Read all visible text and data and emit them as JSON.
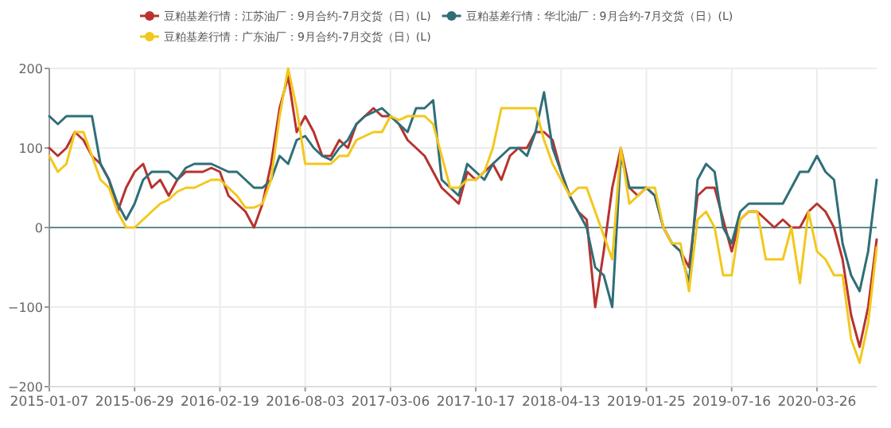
{
  "chart_data": {
    "type": "line",
    "categories": [
      "2015-01-07",
      null,
      null,
      null,
      null,
      null,
      null,
      null,
      null,
      null,
      "2015-06-29",
      null,
      null,
      null,
      null,
      null,
      null,
      null,
      null,
      null,
      "2016-02-19",
      null,
      null,
      null,
      null,
      null,
      null,
      null,
      null,
      null,
      "2016-08-03",
      null,
      null,
      null,
      null,
      null,
      null,
      null,
      null,
      null,
      "2017-03-06",
      null,
      null,
      null,
      null,
      null,
      null,
      null,
      null,
      null,
      "2017-10-17",
      null,
      null,
      null,
      null,
      null,
      null,
      null,
      null,
      null,
      "2018-04-13",
      null,
      null,
      null,
      null,
      null,
      null,
      null,
      null,
      null,
      "2019-01-25",
      null,
      null,
      null,
      null,
      null,
      null,
      null,
      null,
      null,
      "2019-07-16",
      null,
      null,
      null,
      null,
      null,
      null,
      null,
      null,
      null,
      "2020-03-26",
      null,
      null,
      null,
      null,
      null,
      null,
      null
    ],
    "ylim": [
      -200,
      200
    ],
    "yticks": [
      -200,
      -100,
      0,
      100,
      200
    ],
    "grid": true,
    "legend": "top",
    "ref_lines": [
      {
        "axis": "y",
        "value": 0,
        "color": "#5f8a8f"
      }
    ],
    "marker": "none",
    "line_style": "solid",
    "series": [
      {
        "name": "豆粕基差行情：江苏油厂：9月合约-7月交货（日）(L)",
        "color": "#b8322f",
        "values": [
          100,
          90,
          100,
          120,
          110,
          90,
          80,
          60,
          20,
          50,
          70,
          80,
          50,
          60,
          40,
          60,
          70,
          70,
          70,
          75,
          70,
          40,
          30,
          20,
          0,
          30,
          80,
          150,
          190,
          120,
          140,
          120,
          90,
          90,
          110,
          100,
          130,
          140,
          150,
          140,
          140,
          130,
          110,
          100,
          90,
          70,
          50,
          40,
          30,
          70,
          60,
          70,
          80,
          60,
          90,
          100,
          100,
          120,
          120,
          110,
          70,
          40,
          20,
          10,
          -100,
          -30,
          50,
          100,
          50,
          40,
          50,
          40,
          0,
          -20,
          -30,
          -50,
          40,
          50,
          50,
          10,
          -30,
          10,
          20,
          20,
          10,
          0,
          10,
          0,
          0,
          20,
          30,
          20,
          0,
          -40,
          -110,
          -150,
          -100,
          -15
        ]
      },
      {
        "name": "豆粕基差行情：华北油厂：9月合约-7月交货（日）(L)",
        "color": "#2f6e78",
        "values": [
          140,
          130,
          140,
          140,
          140,
          140,
          80,
          60,
          30,
          10,
          30,
          60,
          70,
          70,
          70,
          60,
          75,
          80,
          80,
          80,
          75,
          70,
          70,
          60,
          50,
          50,
          60,
          90,
          80,
          110,
          115,
          100,
          90,
          85,
          100,
          110,
          130,
          140,
          145,
          150,
          140,
          130,
          120,
          150,
          150,
          160,
          60,
          50,
          40,
          80,
          70,
          60,
          80,
          90,
          100,
          100,
          90,
          120,
          170,
          100,
          70,
          40,
          20,
          0,
          -50,
          -60,
          -100,
          90,
          50,
          50,
          50,
          40,
          0,
          -20,
          -30,
          -70,
          60,
          80,
          70,
          0,
          -20,
          20,
          30,
          30,
          30,
          30,
          30,
          50,
          70,
          70,
          90,
          70,
          60,
          -20,
          -60,
          -80,
          -30,
          60
        ]
      },
      {
        "name": "豆粕基差行情：广东油厂：9月合约-7月交货（日）(L)",
        "color": "#f2c81c",
        "values": [
          90,
          70,
          80,
          120,
          120,
          90,
          60,
          50,
          20,
          0,
          0,
          10,
          20,
          30,
          35,
          45,
          50,
          50,
          55,
          60,
          60,
          50,
          40,
          25,
          25,
          30,
          60,
          140,
          200,
          150,
          80,
          80,
          80,
          80,
          90,
          90,
          110,
          115,
          120,
          120,
          140,
          135,
          140,
          140,
          140,
          130,
          90,
          50,
          50,
          60,
          60,
          70,
          100,
          150,
          150,
          150,
          150,
          150,
          110,
          80,
          60,
          40,
          50,
          50,
          20,
          -10,
          -40,
          100,
          30,
          40,
          50,
          50,
          0,
          -20,
          -20,
          -80,
          10,
          20,
          0,
          -60,
          -60,
          10,
          20,
          20,
          -40,
          -40,
          -40,
          0,
          -70,
          20,
          -30,
          -40,
          -60,
          -60,
          -140,
          -170,
          -120,
          -25
        ]
      }
    ]
  }
}
